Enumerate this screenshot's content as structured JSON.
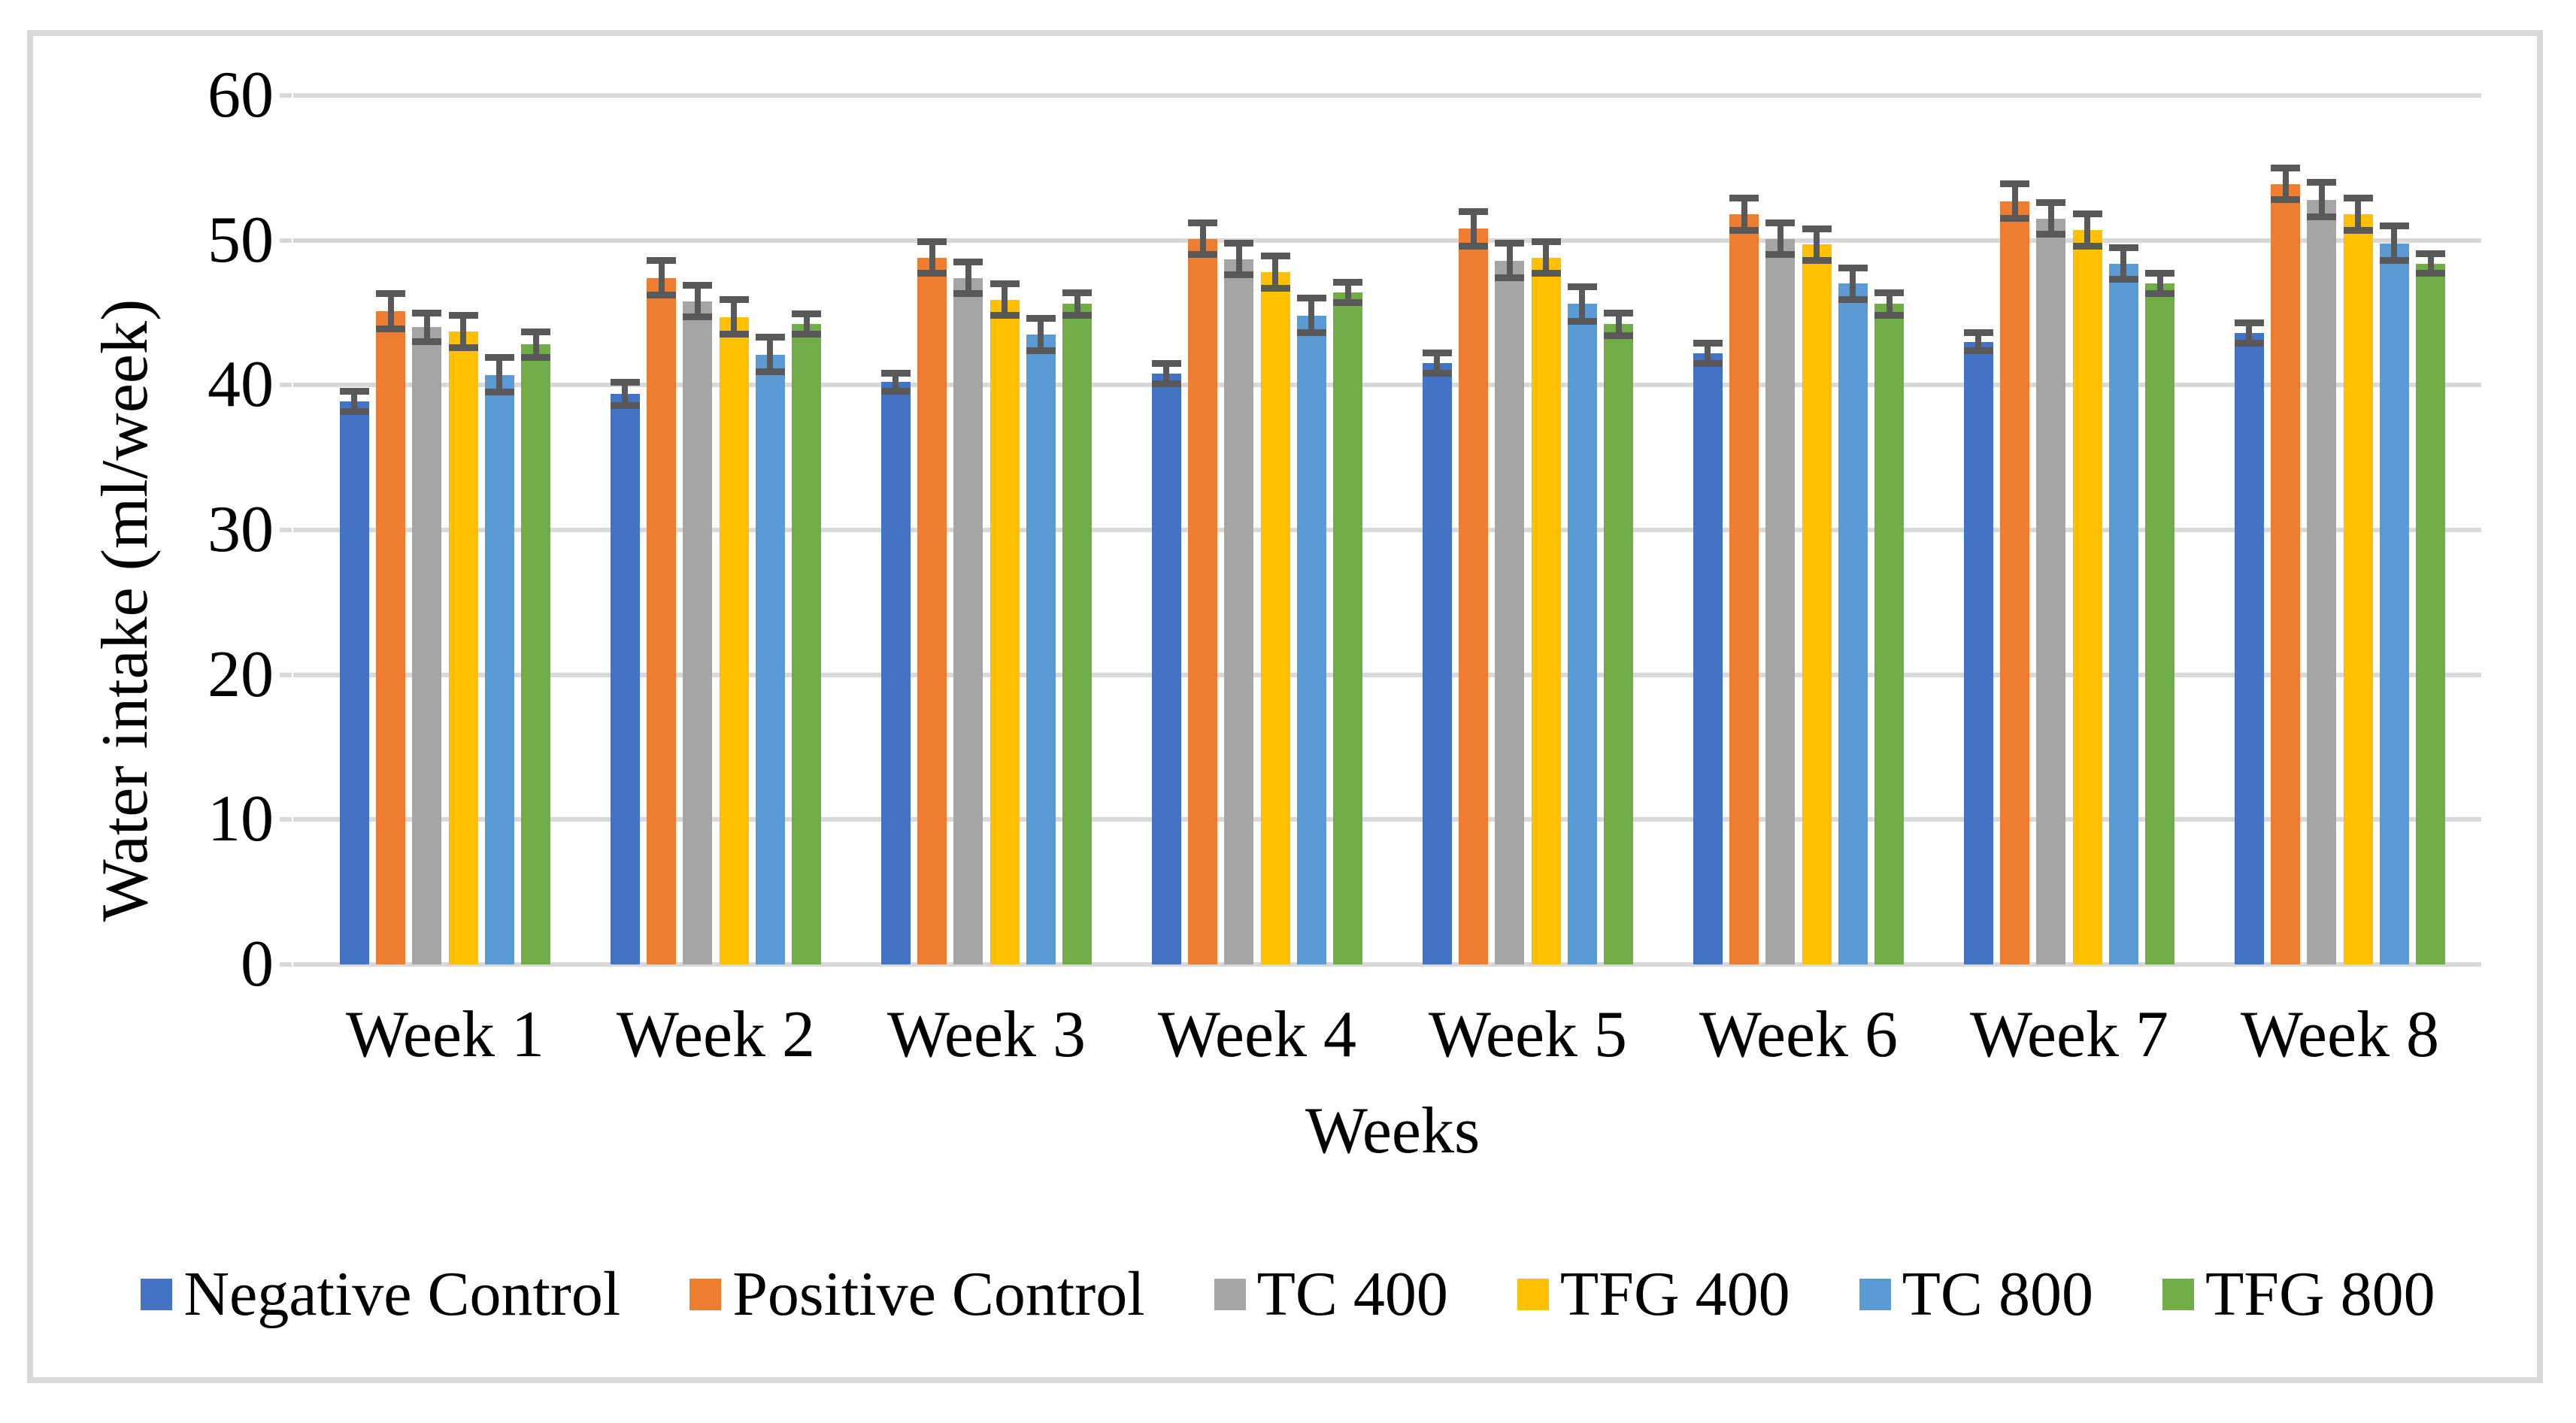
{
  "chart_data": {
    "type": "bar",
    "title": "",
    "xlabel": "Weeks",
    "ylabel": "Water intake (ml/week)",
    "ylim": [
      0,
      60
    ],
    "yticks": [
      0,
      10,
      20,
      30,
      40,
      50,
      60
    ],
    "ytick_labels": [
      "0",
      "10",
      "20",
      "30",
      "40",
      "50",
      "60"
    ],
    "grid": true,
    "legend_position": "bottom",
    "categories": [
      "Week 1",
      "Week 2",
      "Week 3",
      "Week 4",
      "Week 5",
      "Week 6",
      "Week 7",
      "Week 8"
    ],
    "series": [
      {
        "name": "Negative Control",
        "color": "#4472C4",
        "values": [
          38.9,
          39.4,
          40.2,
          40.8,
          41.5,
          42.2,
          43.0,
          43.6
        ],
        "errors": [
          0.7,
          0.8,
          0.6,
          0.7,
          0.7,
          0.7,
          0.6,
          0.7
        ]
      },
      {
        "name": "Positive Control",
        "color": "#ED7D31",
        "values": [
          45.1,
          47.4,
          48.8,
          50.1,
          50.8,
          51.8,
          52.7,
          53.9
        ],
        "errors": [
          1.2,
          1.2,
          1.1,
          1.1,
          1.2,
          1.1,
          1.2,
          1.1
        ]
      },
      {
        "name": "TC 400",
        "color": "#A5A5A5",
        "values": [
          44.0,
          45.8,
          47.4,
          48.7,
          48.6,
          50.1,
          51.5,
          52.8
        ],
        "errors": [
          1.0,
          1.1,
          1.1,
          1.1,
          1.2,
          1.1,
          1.1,
          1.2
        ]
      },
      {
        "name": "TFG 400",
        "color": "#FFC000",
        "values": [
          43.7,
          44.7,
          45.9,
          47.8,
          48.8,
          49.7,
          50.7,
          51.8
        ],
        "errors": [
          1.1,
          1.2,
          1.1,
          1.1,
          1.1,
          1.1,
          1.1,
          1.1
        ]
      },
      {
        "name": "TC 800",
        "color": "#5B9BD5",
        "values": [
          40.7,
          42.1,
          43.5,
          44.8,
          45.6,
          47.0,
          48.4,
          49.8
        ],
        "errors": [
          1.2,
          1.2,
          1.1,
          1.2,
          1.2,
          1.1,
          1.1,
          1.2
        ]
      },
      {
        "name": "TFG 800",
        "color": "#70AD47",
        "values": [
          42.8,
          44.2,
          45.6,
          46.4,
          44.2,
          45.6,
          47.0,
          48.4
        ],
        "errors": [
          0.9,
          0.7,
          0.8,
          0.7,
          0.8,
          0.8,
          0.7,
          0.7
        ]
      }
    ],
    "error_bar_color": "#595959",
    "gridline_color": "#D9D9D9",
    "axis_line_color": "#D9D9D9",
    "border_color": "#D9D9D9"
  }
}
